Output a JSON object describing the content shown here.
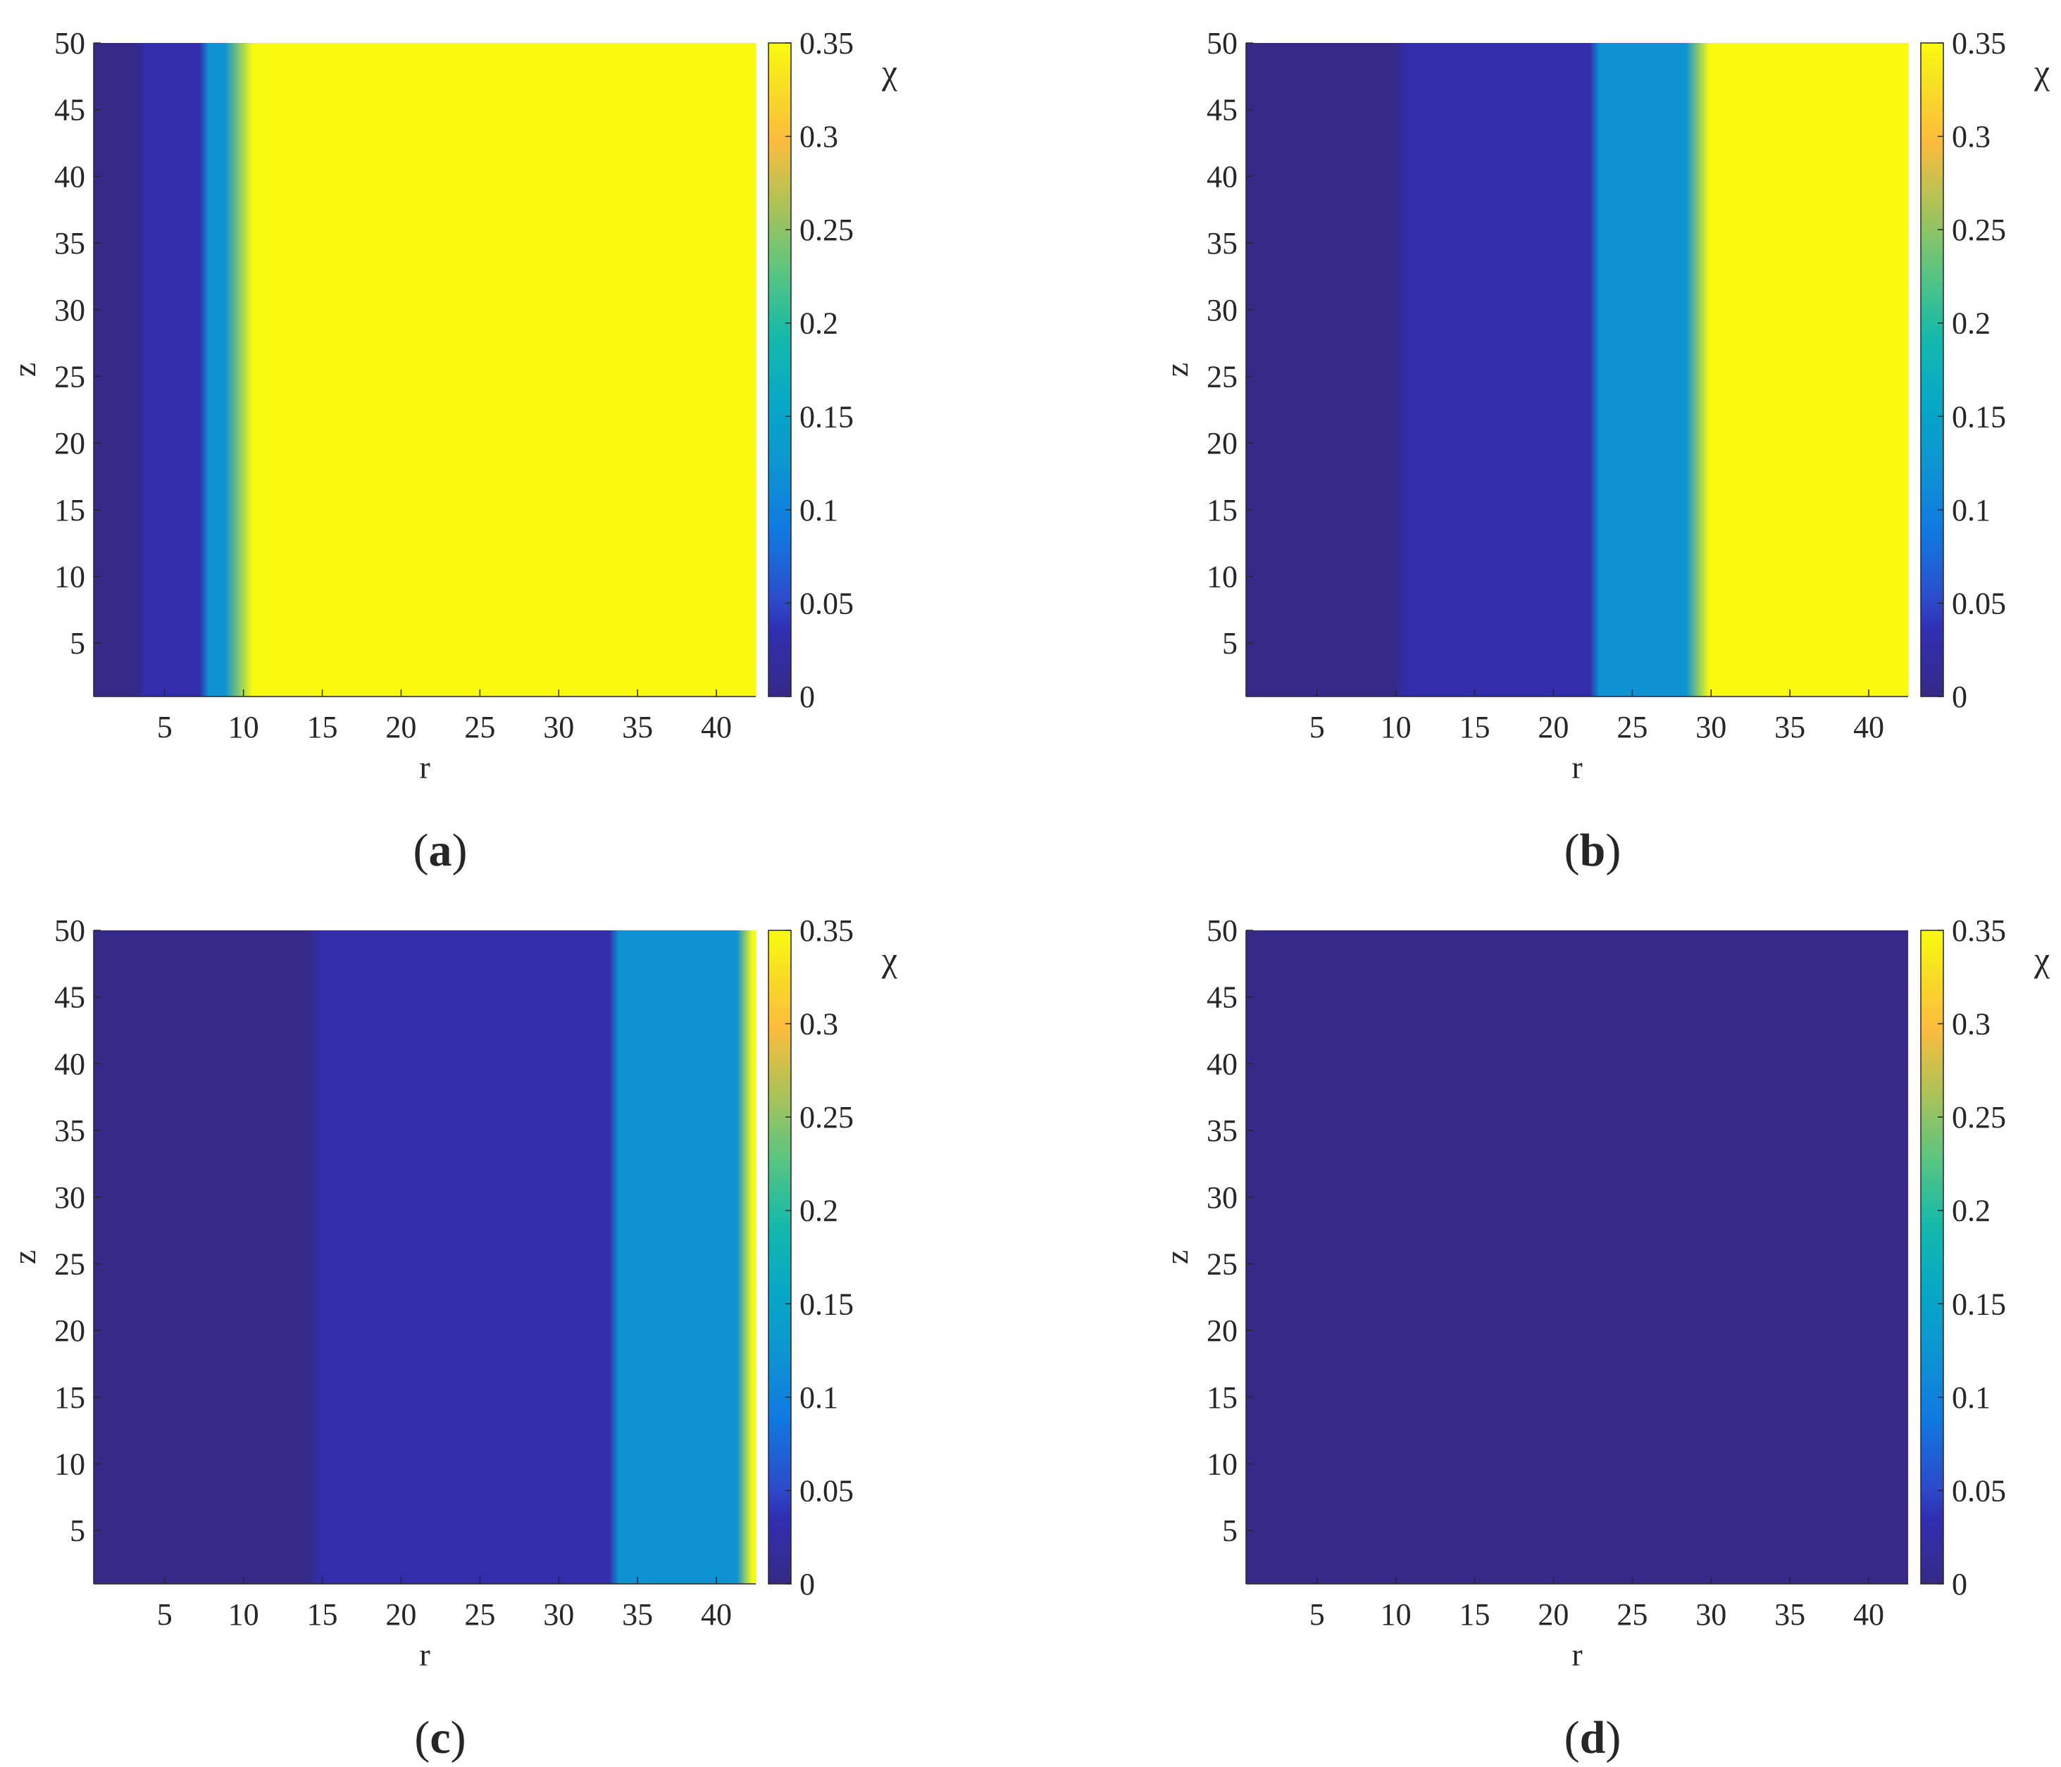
{
  "chart_data": [
    {
      "type": "heatmap",
      "panel_label": "a",
      "xlabel": "r",
      "ylabel": "z",
      "colorbar_label": "χ",
      "xlim": [
        0.5,
        42.5
      ],
      "ylim": [
        1,
        50
      ],
      "xticks": [
        5,
        10,
        15,
        20,
        25,
        30,
        35,
        40
      ],
      "yticks": [
        5,
        10,
        15,
        20,
        25,
        30,
        35,
        40,
        45,
        50
      ],
      "clim": [
        0,
        0.35
      ],
      "cticks": [
        0,
        0.05,
        0.1,
        0.15,
        0.2,
        0.25,
        0.3,
        0.35
      ],
      "colormap": "parula",
      "varies_along": "r",
      "regions": [
        {
          "r_from": 0.5,
          "r_to": 3.3,
          "value": 0.0
        },
        {
          "r_from": 3.7,
          "r_to": 7.2,
          "value": 0.03
        },
        {
          "r_from": 7.8,
          "r_to": 8.8,
          "value": 0.12
        },
        {
          "r_from": 10.6,
          "r_to": 42.5,
          "value": 0.35
        }
      ]
    },
    {
      "type": "heatmap",
      "panel_label": "b",
      "xlabel": "r",
      "ylabel": "z",
      "colorbar_label": "χ",
      "xlim": [
        0.5,
        42.5
      ],
      "ylim": [
        1,
        50
      ],
      "xticks": [
        5,
        10,
        15,
        20,
        25,
        30,
        35,
        40
      ],
      "yticks": [
        5,
        10,
        15,
        20,
        25,
        30,
        35,
        40,
        45,
        50
      ],
      "clim": [
        0,
        0.35
      ],
      "cticks": [
        0,
        0.05,
        0.1,
        0.15,
        0.2,
        0.25,
        0.3,
        0.35
      ],
      "colormap": "parula",
      "varies_along": "r",
      "regions": [
        {
          "r_from": 0.5,
          "r_to": 10.0,
          "value": 0.0
        },
        {
          "r_from": 10.6,
          "r_to": 22.3,
          "value": 0.03
        },
        {
          "r_from": 22.9,
          "r_to": 28.4,
          "value": 0.12
        },
        {
          "r_from": 29.9,
          "r_to": 42.5,
          "value": 0.35
        }
      ]
    },
    {
      "type": "heatmap",
      "panel_label": "c",
      "xlabel": "r",
      "ylabel": "z",
      "colorbar_label": "χ",
      "xlim": [
        0.5,
        42.5
      ],
      "ylim": [
        1,
        50
      ],
      "xticks": [
        5,
        10,
        15,
        20,
        25,
        30,
        35,
        40
      ],
      "yticks": [
        5,
        10,
        15,
        20,
        25,
        30,
        35,
        40,
        45,
        50
      ],
      "clim": [
        0,
        0.35
      ],
      "cticks": [
        0,
        0.05,
        0.1,
        0.15,
        0.2,
        0.25,
        0.3,
        0.35
      ],
      "colormap": "parula",
      "varies_along": "r",
      "regions": [
        {
          "r_from": 0.5,
          "r_to": 14.2,
          "value": 0.0
        },
        {
          "r_from": 14.8,
          "r_to": 33.2,
          "value": 0.03
        },
        {
          "r_from": 33.8,
          "r_to": 41.3,
          "value": 0.12
        },
        {
          "r_from": 42.3,
          "r_to": 42.5,
          "value": 0.35
        }
      ]
    },
    {
      "type": "heatmap",
      "panel_label": "d",
      "xlabel": "r",
      "ylabel": "z",
      "colorbar_label": "χ",
      "xlim": [
        0.5,
        42.5
      ],
      "ylim": [
        1,
        50
      ],
      "xticks": [
        5,
        10,
        15,
        20,
        25,
        30,
        35,
        40
      ],
      "yticks": [
        5,
        10,
        15,
        20,
        25,
        30,
        35,
        40,
        45,
        50
      ],
      "clim": [
        0,
        0.35
      ],
      "cticks": [
        0,
        0.05,
        0.1,
        0.15,
        0.2,
        0.25,
        0.3,
        0.35
      ],
      "colormap": "parula",
      "varies_along": "r",
      "regions": [
        {
          "r_from": 0.5,
          "r_to": 42.5,
          "value": 0.0
        }
      ]
    }
  ]
}
